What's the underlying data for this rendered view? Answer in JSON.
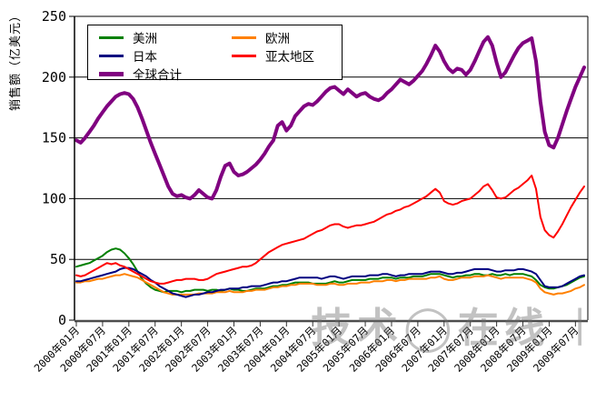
{
  "y_axis": {
    "title": "销售额（亿美元）",
    "ticks": [
      0,
      50,
      100,
      150,
      200,
      250
    ]
  },
  "x_axis": {
    "labels": [
      "2000年01月",
      "2000年07月",
      "2001年01月",
      "2001年07月",
      "2002年01月",
      "2002年07月",
      "2003年01月",
      "2003年07月",
      "2004年01月",
      "2004年07月",
      "2005年01月",
      "2005年07月",
      "2006年01月",
      "2006年07月",
      "2007年01月",
      "2007年07月",
      "2008年01月",
      "2008年07月",
      "2009年01月",
      "2009年07月"
    ]
  },
  "watermark": {
    "part1": "技术",
    "circle": "◯",
    "part2": "在线",
    "bar": "丨"
  },
  "colors": {
    "americas": "#008000",
    "europe": "#ff8000",
    "japan": "#000080",
    "asia_pacific": "#ff0000",
    "global": "#800080",
    "grid": "#000000",
    "axis": "#4d4d4d"
  },
  "chart_data": {
    "type": "line",
    "title": "",
    "ylabel": "销售额（亿美元）",
    "xlabel": "",
    "ylim": [
      0,
      250
    ],
    "y_gridlines": [
      0,
      50,
      100,
      150,
      200,
      250
    ],
    "x_interval": "monthly",
    "x_start": "2000年01月",
    "x_end": "2009年09月",
    "legend_position": "inside-top-left",
    "series": [
      {
        "name": "美洲",
        "key": "americas",
        "color": "#008000",
        "width": 2,
        "values": [
          44,
          45,
          46,
          47,
          49,
          51,
          53,
          56,
          58,
          59,
          58,
          55,
          51,
          46,
          40,
          34,
          30,
          27,
          25,
          24,
          23,
          24,
          24,
          24,
          23,
          24,
          24,
          25,
          25,
          25,
          24,
          25,
          25,
          24,
          25,
          26,
          25,
          25,
          24,
          24,
          25,
          26,
          26,
          26,
          27,
          28,
          28,
          29,
          29,
          30,
          31,
          31,
          31,
          31,
          30,
          30,
          30,
          30,
          31,
          32,
          31,
          31,
          32,
          33,
          33,
          33,
          33,
          34,
          34,
          34,
          35,
          35,
          35,
          34,
          35,
          35,
          35,
          36,
          36,
          36,
          37,
          38,
          38,
          38,
          37,
          36,
          35,
          36,
          36,
          37,
          37,
          38,
          38,
          37,
          37,
          38,
          37,
          37,
          38,
          37,
          38,
          38,
          38,
          37,
          36,
          33,
          29,
          27,
          26,
          26,
          27,
          28,
          29,
          31,
          33,
          35,
          36
        ]
      },
      {
        "name": "欧洲",
        "key": "europe",
        "color": "#ff8000",
        "width": 2,
        "values": [
          31,
          31,
          32,
          32,
          33,
          34,
          34,
          35,
          36,
          37,
          37,
          38,
          37,
          36,
          35,
          33,
          31,
          29,
          27,
          25,
          23,
          22,
          21,
          21,
          21,
          21,
          21,
          21,
          22,
          22,
          22,
          22,
          23,
          23,
          23,
          24,
          23,
          23,
          23,
          24,
          24,
          25,
          25,
          25,
          26,
          27,
          27,
          28,
          28,
          29,
          29,
          30,
          30,
          30,
          30,
          29,
          29,
          29,
          30,
          30,
          29,
          29,
          30,
          30,
          30,
          31,
          31,
          31,
          32,
          32,
          32,
          33,
          33,
          32,
          33,
          33,
          34,
          34,
          34,
          34,
          34,
          35,
          35,
          36,
          34,
          33,
          33,
          34,
          35,
          35,
          35,
          36,
          36,
          36,
          37,
          36,
          35,
          34,
          35,
          35,
          35,
          35,
          35,
          34,
          33,
          31,
          26,
          23,
          22,
          21,
          22,
          22,
          23,
          24,
          26,
          27,
          29
        ]
      },
      {
        "name": "日本",
        "key": "japan",
        "color": "#000080",
        "width": 2,
        "values": [
          32,
          32,
          33,
          34,
          35,
          36,
          37,
          38,
          39,
          40,
          42,
          43,
          43,
          42,
          40,
          38,
          36,
          33,
          31,
          28,
          26,
          24,
          22,
          21,
          20,
          19,
          20,
          21,
          21,
          22,
          23,
          23,
          24,
          25,
          25,
          26,
          26,
          26,
          27,
          27,
          28,
          28,
          28,
          29,
          30,
          31,
          31,
          32,
          32,
          33,
          34,
          35,
          35,
          35,
          35,
          35,
          34,
          35,
          36,
          36,
          35,
          34,
          35,
          36,
          36,
          36,
          36,
          37,
          37,
          37,
          38,
          38,
          37,
          36,
          37,
          37,
          38,
          38,
          38,
          38,
          39,
          40,
          40,
          40,
          39,
          38,
          38,
          39,
          39,
          40,
          41,
          42,
          42,
          42,
          42,
          41,
          40,
          40,
          41,
          41,
          41,
          42,
          42,
          41,
          40,
          38,
          33,
          28,
          27,
          27,
          27,
          28,
          30,
          32,
          34,
          36,
          37
        ]
      },
      {
        "name": "亚太地区",
        "key": "asia_pacific",
        "color": "#ff0000",
        "width": 2,
        "values": [
          37,
          36,
          37,
          39,
          41,
          43,
          45,
          47,
          46,
          47,
          45,
          44,
          42,
          40,
          38,
          36,
          34,
          32,
          31,
          30,
          30,
          31,
          32,
          33,
          33,
          34,
          34,
          34,
          33,
          33,
          34,
          36,
          38,
          39,
          40,
          41,
          42,
          43,
          44,
          44,
          45,
          47,
          50,
          53,
          56,
          58,
          60,
          62,
          63,
          64,
          65,
          66,
          67,
          69,
          71,
          73,
          74,
          76,
          78,
          79,
          79,
          77,
          76,
          77,
          78,
          78,
          79,
          80,
          81,
          83,
          85,
          87,
          88,
          90,
          91,
          93,
          94,
          96,
          98,
          100,
          102,
          105,
          108,
          105,
          98,
          96,
          95,
          96,
          98,
          99,
          100,
          103,
          106,
          110,
          112,
          107,
          101,
          100,
          101,
          104,
          107,
          109,
          112,
          115,
          119,
          108,
          85,
          74,
          70,
          68,
          73,
          79,
          86,
          93,
          99,
          105,
          110
        ]
      },
      {
        "name": "全球合计",
        "key": "global",
        "color": "#800080",
        "width": 4,
        "values": [
          148,
          146,
          150,
          155,
          160,
          166,
          171,
          176,
          180,
          184,
          186,
          187,
          186,
          182,
          175,
          166,
          156,
          146,
          137,
          128,
          119,
          110,
          104,
          102,
          103,
          101,
          100,
          103,
          107,
          104,
          101,
          100,
          107,
          118,
          127,
          129,
          122,
          119,
          120,
          122,
          125,
          128,
          132,
          137,
          143,
          148,
          160,
          163,
          156,
          160,
          168,
          172,
          176,
          178,
          177,
          180,
          184,
          188,
          191,
          192,
          189,
          186,
          190,
          187,
          184,
          186,
          187,
          184,
          182,
          181,
          183,
          187,
          190,
          194,
          198,
          196,
          194,
          197,
          201,
          205,
          211,
          218,
          226,
          221,
          213,
          207,
          204,
          207,
          206,
          202,
          206,
          213,
          221,
          229,
          233,
          226,
          212,
          200,
          204,
          211,
          218,
          224,
          228,
          230,
          232,
          213,
          180,
          155,
          144,
          142,
          150,
          161,
          172,
          182,
          192,
          200,
          208
        ]
      }
    ]
  }
}
